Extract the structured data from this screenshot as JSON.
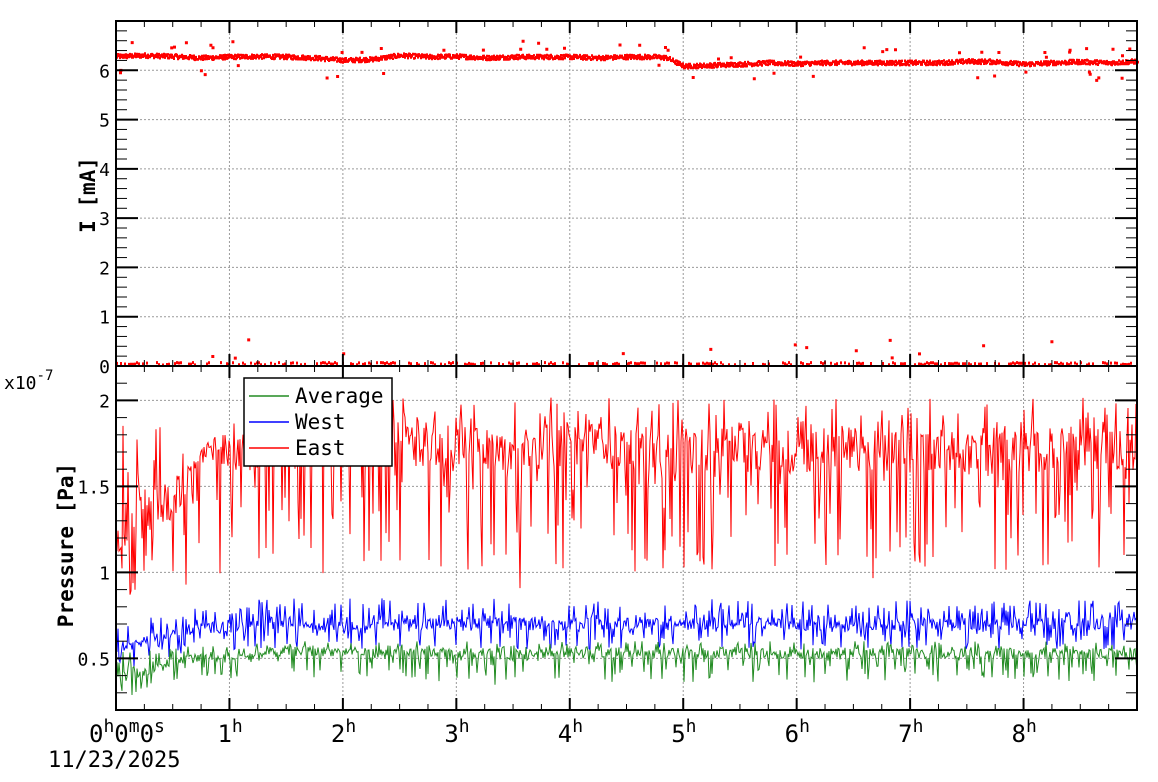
{
  "chart_data": [
    {
      "type": "scatter",
      "ylabel": "I [mA]",
      "xlim": [
        0,
        9
      ],
      "ylim": [
        0,
        7
      ],
      "ytick_labels": [
        "0",
        "1",
        "2",
        "3",
        "4",
        "5",
        "6"
      ],
      "grid": true,
      "colors": {
        "points": "#ff0000"
      },
      "series": [
        {
          "x": [
            0,
            0.25,
            0.5,
            0.75,
            1,
            1.25,
            1.5,
            1.75,
            2,
            2.25,
            2.5,
            2.75,
            3,
            3.25,
            3.5,
            3.75,
            4,
            4.25,
            4.5,
            4.75,
            4.85,
            5,
            5.25,
            5.5,
            5.75,
            6,
            6.25,
            6.5,
            6.75,
            7,
            7.25,
            7.5,
            7.75,
            8,
            8.25,
            8.5,
            8.75,
            9
          ],
          "values": [
            6.28,
            6.3,
            6.28,
            6.25,
            6.27,
            6.28,
            6.27,
            6.25,
            6.2,
            6.22,
            6.3,
            6.27,
            6.28,
            6.25,
            6.27,
            6.27,
            6.27,
            6.25,
            6.27,
            6.27,
            6.25,
            6.08,
            6.1,
            6.12,
            6.15,
            6.13,
            6.15,
            6.15,
            6.15,
            6.15,
            6.15,
            6.18,
            6.17,
            6.12,
            6.15,
            6.17,
            6.15,
            6.18
          ]
        }
      ],
      "baseline_value": 0.02
    },
    {
      "type": "line",
      "ylabel": "Pressure [Pa]",
      "y_multiplier": "x10",
      "y_exponent": "-7",
      "xlim": [
        0,
        9
      ],
      "ylim": [
        0.2,
        2.2
      ],
      "ytick_labels": [
        "0.5",
        "1",
        "1.5",
        "2"
      ],
      "xtick_labels": [
        "0",
        "1",
        "2",
        "3",
        "4",
        "5",
        "6",
        "7",
        "8"
      ],
      "x_origin_label": {
        "h": "h",
        "m": "m",
        "s": "s"
      },
      "x_hour_suffix": "h",
      "date_label": "11/23/2025",
      "grid": true,
      "legend": {
        "placement": "top-left",
        "entries": [
          {
            "name": "Average",
            "color": "#228b22"
          },
          {
            "name": "West",
            "color": "#0000ff"
          },
          {
            "name": "East",
            "color": "#ff0000"
          }
        ]
      },
      "x": [
        0,
        0.25,
        0.5,
        0.75,
        1,
        1.25,
        1.5,
        1.75,
        2,
        2.25,
        2.5,
        2.75,
        3,
        3.25,
        3.5,
        3.75,
        4,
        4.25,
        4.5,
        4.75,
        5,
        5.25,
        5.5,
        5.75,
        6,
        6.25,
        6.5,
        6.75,
        7,
        7.25,
        7.5,
        7.75,
        8,
        8.25,
        8.5,
        8.75,
        9
      ],
      "series": [
        {
          "name": "East",
          "values": [
            1.25,
            1.35,
            1.4,
            1.7,
            1.68,
            1.72,
            1.75,
            1.75,
            1.72,
            1.75,
            1.75,
            1.73,
            1.75,
            1.72,
            1.72,
            1.73,
            1.75,
            1.75,
            1.72,
            1.72,
            1.7,
            1.72,
            1.72,
            1.7,
            1.7,
            1.72,
            1.72,
            1.7,
            1.7,
            1.72,
            1.7,
            1.72,
            1.7,
            1.72,
            1.72,
            1.72,
            1.72
          ],
          "min": [
            0.8,
            0.85,
            0.85,
            0.95,
            0.95,
            0.95,
            0.95,
            1.0,
            0.95,
            1.0,
            1.0,
            1.0,
            1.0,
            1.0,
            0.85,
            1.0,
            1.0,
            1.0,
            1.0,
            1.0,
            0.95,
            1.0,
            1.0,
            1.0,
            0.95,
            1.0,
            1.0,
            0.95,
            1.0,
            1.0,
            0.95,
            1.0,
            1.0,
            1.0,
            1.0,
            1.0,
            1.0
          ],
          "max": [
            1.9,
            1.95,
            1.9,
            1.72,
            1.9,
            2.0,
            2.0,
            2.0,
            2.0,
            2.02,
            2.02,
            2.0,
            2.02,
            2.02,
            2.02,
            2.02,
            2.02,
            2.02,
            2.02,
            2.02,
            2.02,
            2.02,
            2.02,
            2.02,
            2.02,
            2.02,
            2.02,
            2.02,
            2.02,
            2.02,
            2.02,
            2.02,
            2.02,
            2.02,
            2.02,
            2.02,
            2.02
          ]
        },
        {
          "name": "West",
          "values": [
            0.55,
            0.6,
            0.65,
            0.68,
            0.68,
            0.7,
            0.7,
            0.7,
            0.7,
            0.7,
            0.7,
            0.7,
            0.7,
            0.7,
            0.7,
            0.7,
            0.7,
            0.7,
            0.7,
            0.7,
            0.7,
            0.7,
            0.7,
            0.7,
            0.7,
            0.7,
            0.7,
            0.7,
            0.7,
            0.7,
            0.7,
            0.7,
            0.7,
            0.7,
            0.7,
            0.7,
            0.7
          ],
          "min": [
            0.4,
            0.45,
            0.5,
            0.55,
            0.55,
            0.55,
            0.55,
            0.55,
            0.55,
            0.55,
            0.55,
            0.55,
            0.55,
            0.55,
            0.55,
            0.55,
            0.55,
            0.55,
            0.55,
            0.55,
            0.55,
            0.55,
            0.55,
            0.55,
            0.55,
            0.55,
            0.55,
            0.55,
            0.55,
            0.55,
            0.55,
            0.55,
            0.55,
            0.55,
            0.55,
            0.55,
            0.55
          ],
          "max": [
            0.7,
            0.75,
            0.78,
            0.8,
            0.82,
            0.85,
            0.85,
            0.85,
            0.85,
            0.85,
            0.85,
            0.85,
            0.85,
            0.85,
            0.85,
            0.85,
            0.85,
            0.85,
            0.85,
            0.85,
            0.85,
            0.85,
            0.85,
            0.85,
            0.85,
            0.85,
            0.85,
            0.85,
            0.85,
            0.85,
            0.85,
            0.85,
            0.85,
            0.85,
            0.85,
            0.85,
            0.85
          ]
        },
        {
          "name": "Average",
          "values": [
            0.4,
            0.42,
            0.48,
            0.5,
            0.5,
            0.52,
            0.54,
            0.54,
            0.54,
            0.53,
            0.53,
            0.53,
            0.53,
            0.53,
            0.53,
            0.53,
            0.53,
            0.53,
            0.53,
            0.53,
            0.53,
            0.53,
            0.53,
            0.53,
            0.53,
            0.53,
            0.53,
            0.53,
            0.53,
            0.53,
            0.53,
            0.53,
            0.53,
            0.53,
            0.53,
            0.53,
            0.53
          ],
          "min": [
            0.22,
            0.28,
            0.35,
            0.38,
            0.38,
            0.38,
            0.38,
            0.38,
            0.38,
            0.38,
            0.38,
            0.36,
            0.38,
            0.38,
            0.25,
            0.36,
            0.36,
            0.36,
            0.36,
            0.36,
            0.36,
            0.36,
            0.36,
            0.36,
            0.36,
            0.36,
            0.36,
            0.36,
            0.36,
            0.36,
            0.36,
            0.36,
            0.36,
            0.36,
            0.36,
            0.36,
            0.33
          ],
          "max": [
            0.55,
            0.55,
            0.58,
            0.58,
            0.6,
            0.6,
            0.6,
            0.6,
            0.6,
            0.6,
            0.6,
            0.6,
            0.6,
            0.6,
            0.6,
            0.6,
            0.6,
            0.6,
            0.6,
            0.6,
            0.6,
            0.6,
            0.6,
            0.6,
            0.6,
            0.6,
            0.6,
            0.6,
            0.6,
            0.6,
            0.6,
            0.6,
            0.6,
            0.6,
            0.6,
            0.6,
            0.6
          ]
        }
      ]
    }
  ]
}
